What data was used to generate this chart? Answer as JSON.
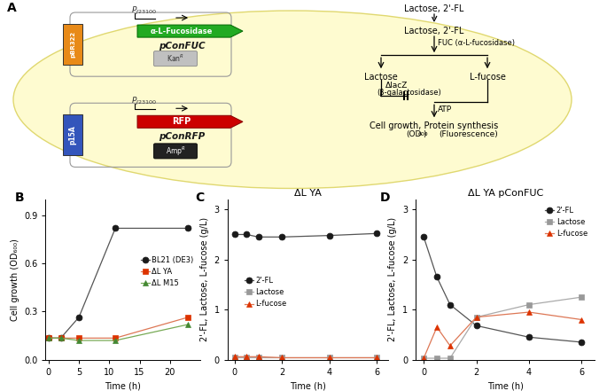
{
  "panel_B": {
    "xlabel": "Time (h)",
    "ylabel": "Cell growth (OD₆₀₀)",
    "xlim": [
      -0.5,
      25
    ],
    "ylim": [
      0,
      1.0
    ],
    "yticks": [
      0.0,
      0.3,
      0.6,
      0.9
    ],
    "xticks": [
      0,
      5,
      10,
      15,
      20
    ],
    "series": [
      {
        "label": "BL21 (DE3)",
        "color": "#1a1a1a",
        "linecolor": "#555555",
        "marker": "o",
        "markersize": 5,
        "x": [
          0,
          2,
          5,
          11,
          23
        ],
        "y": [
          0.135,
          0.135,
          0.265,
          0.82,
          0.82
        ]
      },
      {
        "label": "ΔL YA",
        "color": "#dd3300",
        "linecolor": "#dd7755",
        "marker": "s",
        "markersize": 5,
        "x": [
          0,
          2,
          5,
          11,
          23
        ],
        "y": [
          0.135,
          0.135,
          0.135,
          0.135,
          0.265
        ]
      },
      {
        "label": "ΔL M15",
        "color": "#448833",
        "linecolor": "#77aa55",
        "marker": "^",
        "markersize": 5,
        "x": [
          0,
          2,
          5,
          11,
          23
        ],
        "y": [
          0.135,
          0.135,
          0.12,
          0.12,
          0.22
        ]
      }
    ]
  },
  "panel_C": {
    "title": "ΔL YA",
    "xlabel": "Time (h)",
    "ylabel": "2'-FL, Lactose, L-fucose (g/L)",
    "xlim": [
      -0.3,
      6.5
    ],
    "ylim": [
      0,
      3.2
    ],
    "yticks": [
      0,
      1,
      2,
      3
    ],
    "xticks": [
      0,
      2,
      4,
      6
    ],
    "series": [
      {
        "label": "2'-FL",
        "color": "#1a1a1a",
        "linecolor": "#555555",
        "marker": "o",
        "markersize": 5,
        "x": [
          0,
          0.5,
          1,
          2,
          4,
          6
        ],
        "y": [
          2.5,
          2.5,
          2.45,
          2.45,
          2.48,
          2.52
        ]
      },
      {
        "label": "Lactose",
        "color": "#999999",
        "linecolor": "#aaaaaa",
        "marker": "s",
        "markersize": 5,
        "x": [
          0,
          0.5,
          1,
          2,
          4,
          6
        ],
        "y": [
          0.04,
          0.04,
          0.04,
          0.04,
          0.04,
          0.04
        ]
      },
      {
        "label": "L-fucose",
        "color": "#dd3300",
        "linecolor": "#dd7755",
        "marker": "^",
        "markersize": 5,
        "x": [
          0,
          0.5,
          1,
          2,
          4,
          6
        ],
        "y": [
          0.06,
          0.06,
          0.06,
          0.04,
          0.04,
          0.04
        ]
      }
    ]
  },
  "panel_D": {
    "title": "ΔL YA pConFUC",
    "xlabel": "Time (h)",
    "ylabel": "2'-FL, Lactose, L-fucose (g/L)",
    "xlim": [
      -0.3,
      6.5
    ],
    "ylim": [
      0,
      3.2
    ],
    "yticks": [
      0,
      1,
      2,
      3
    ],
    "xticks": [
      0,
      2,
      4,
      6
    ],
    "series": [
      {
        "label": "2'-FL",
        "color": "#1a1a1a",
        "linecolor": "#555555",
        "marker": "o",
        "markersize": 5,
        "x": [
          0,
          0.5,
          1,
          2,
          4,
          6
        ],
        "y": [
          2.45,
          1.65,
          1.1,
          0.68,
          0.45,
          0.35
        ]
      },
      {
        "label": "Lactose",
        "color": "#999999",
        "linecolor": "#aaaaaa",
        "marker": "s",
        "markersize": 5,
        "x": [
          0,
          0.5,
          1,
          2,
          4,
          6
        ],
        "y": [
          0.03,
          0.03,
          0.03,
          0.85,
          1.1,
          1.25
        ]
      },
      {
        "label": "L-fucose",
        "color": "#dd3300",
        "linecolor": "#dd7755",
        "marker": "^",
        "markersize": 5,
        "x": [
          0,
          0.5,
          1,
          2,
          4,
          6
        ],
        "y": [
          0.03,
          0.65,
          0.28,
          0.85,
          0.95,
          0.8
        ]
      }
    ]
  },
  "label_fontsize": 7,
  "tick_fontsize": 7,
  "title_fontsize": 8
}
